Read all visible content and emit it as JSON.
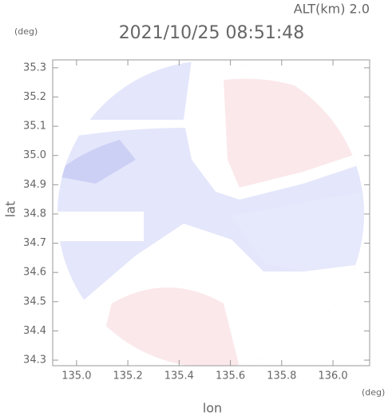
{
  "chart_data": {
    "type": "radar-field",
    "altitude_label": "ALT(km) 2.0",
    "y_unit": "(deg)",
    "x_unit": "(deg)",
    "title": "2021/10/25 08:51:48",
    "ylabel": "lat",
    "xlabel": "lon",
    "xlim": [
      134.907,
      136.143
    ],
    "ylim": [
      34.281,
      35.327
    ],
    "xticks": [
      {
        "value": 135,
        "label": "135.0"
      },
      135.2,
      135.4,
      135.6,
      135.8,
      {
        "value": 136,
        "label": "136.0"
      }
    ],
    "yticks": [
      34.3,
      34.4,
      34.5,
      34.6,
      34.7,
      34.8,
      34.9,
      {
        "value": 35,
        "label": "35.0"
      },
      35.1,
      35.2,
      35.3
    ]
  }
}
